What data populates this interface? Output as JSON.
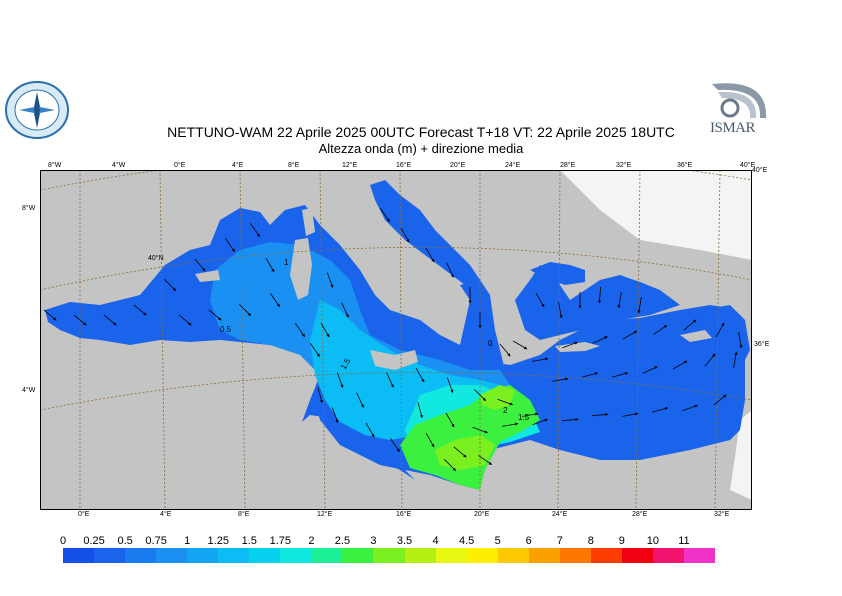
{
  "title": {
    "line1": "NETTUNO-WAM  22   Aprile  2025 00UTC Forecast T+18 VT: 22   Aprile  2025 18UTC",
    "line2": "Altezza onda (m) + direzione media"
  },
  "logos": {
    "left": {
      "icon": "compass-rose-seal-icon"
    },
    "right": {
      "text": "ISMAR",
      "icon": "ismar-logo-icon"
    }
  },
  "map": {
    "top_lon_labels": [
      "8°W",
      "4°W",
      "0°E",
      "4°E",
      "8°E",
      "12°E",
      "16°E",
      "20°E",
      "24°E",
      "28°E",
      "32°E",
      "36°E",
      "40°E"
    ],
    "bottom_lon_labels": [
      "0°E",
      "4°E",
      "8°E",
      "12°E",
      "16°E",
      "20°E",
      "24°E",
      "28°E",
      "32°E"
    ],
    "left_lat_labels": [
      "8°W",
      "40°N",
      "4°W"
    ],
    "right_lat_labels": [
      "40°E",
      "36°E"
    ],
    "contour_labels": [
      "0.5",
      "1.5",
      "2",
      "1.5",
      "0",
      "1"
    ]
  },
  "legend": {
    "labels": [
      "0",
      "0.25",
      "0.5",
      "0.75",
      "1",
      "1.25",
      "1.5",
      "1.75",
      "2",
      "2.5",
      "3",
      "3.5",
      "4",
      "4.5",
      "5",
      "6",
      "7",
      "8",
      "9",
      "10",
      "11"
    ],
    "colors": [
      "#1550e6",
      "#1a64ec",
      "#1a7af0",
      "#1a90f2",
      "#14a6f4",
      "#0cbcf4",
      "#06d2f0",
      "#10e8e0",
      "#1ef09a",
      "#3cf040",
      "#7af020",
      "#b4f014",
      "#e8f810",
      "#fcf000",
      "#fcc800",
      "#fca000",
      "#fc7800",
      "#fc3c00",
      "#f00010",
      "#f0146e",
      "#f032c8"
    ]
  }
}
